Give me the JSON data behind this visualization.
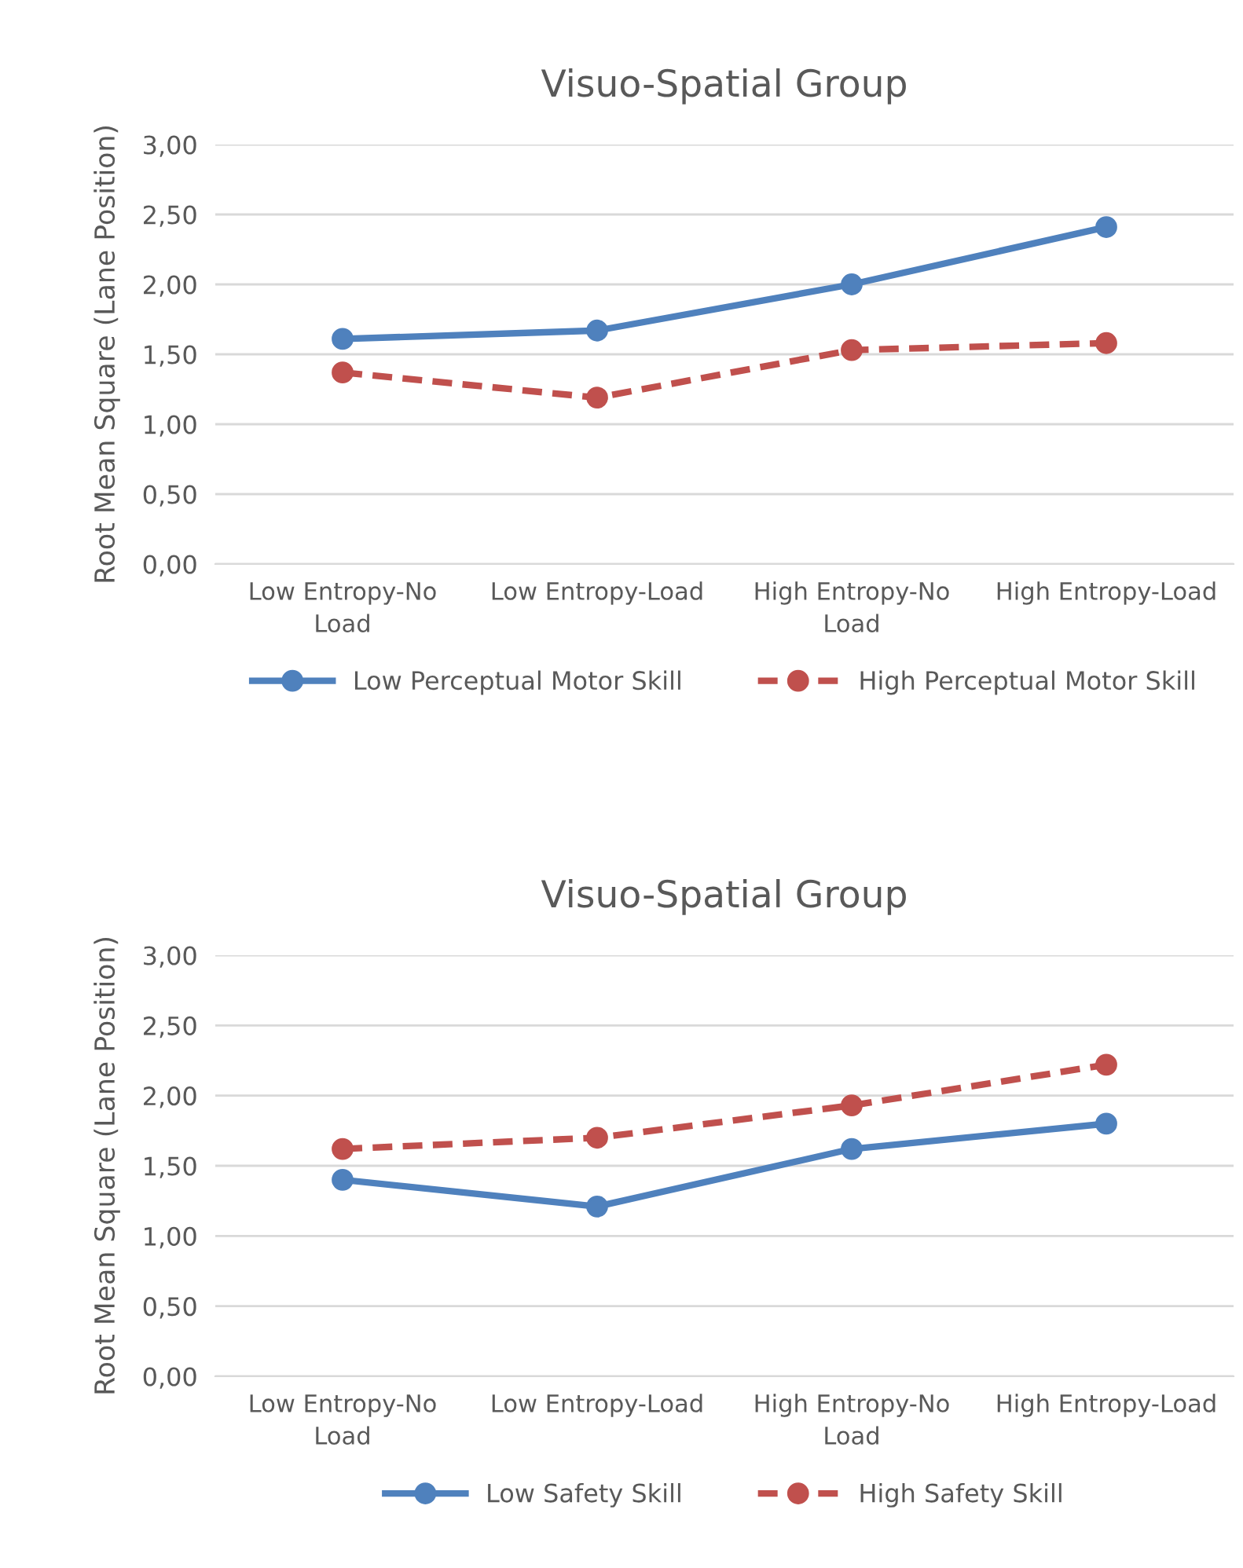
{
  "chart_data": [
    {
      "type": "line",
      "title": "Visuo-Spatial Group",
      "ylabel": "Root Mean Square (Lane Position)",
      "categories": [
        "Low Entropy-No Load",
        "Low Entropy-Load",
        "High Entropy-No Load",
        "High Entropy-Load"
      ],
      "series": [
        {
          "name": "Low Perceptual Motor Skill",
          "color": "#4f81bd",
          "line_style": "solid",
          "values": [
            1.61,
            1.67,
            2.0,
            2.41
          ]
        },
        {
          "name": "High Perceptual Motor Skill",
          "color": "#c0504d",
          "line_style": "dashed",
          "values": [
            1.37,
            1.19,
            1.53,
            1.58
          ]
        }
      ],
      "ylim": [
        0,
        3
      ],
      "yticks": [
        {
          "value": 0,
          "label": "0,00"
        },
        {
          "value": 0.5,
          "label": "0,50"
        },
        {
          "value": 1,
          "label": "1,00"
        },
        {
          "value": 1.5,
          "label": "1,50"
        },
        {
          "value": 2,
          "label": "2,00"
        },
        {
          "value": 2.5,
          "label": "2,50"
        },
        {
          "value": 3,
          "label": "3,00"
        }
      ],
      "grid": "y",
      "legend": "bottom",
      "marker": "circle"
    },
    {
      "type": "line",
      "title": "Visuo-Spatial Group",
      "ylabel": "Root Mean Square (Lane Position)",
      "categories": [
        "Low Entropy-No Load",
        "Low Entropy-Load",
        "High Entropy-No Load",
        "High Entropy-Load"
      ],
      "series": [
        {
          "name": "Low Safety Skill",
          "color": "#4f81bd",
          "line_style": "solid",
          "values": [
            1.4,
            1.21,
            1.62,
            1.8
          ]
        },
        {
          "name": "High Safety Skill",
          "color": "#c0504d",
          "line_style": "dashed",
          "values": [
            1.62,
            1.7,
            1.93,
            2.22
          ]
        }
      ],
      "ylim": [
        0,
        3
      ],
      "yticks": [
        {
          "value": 0,
          "label": "0,00"
        },
        {
          "value": 0.5,
          "label": "0,50"
        },
        {
          "value": 1,
          "label": "1,00"
        },
        {
          "value": 1.5,
          "label": "1,50"
        },
        {
          "value": 2,
          "label": "2,00"
        },
        {
          "value": 2.5,
          "label": "2,50"
        },
        {
          "value": 3,
          "label": "3,00"
        }
      ],
      "grid": "y",
      "legend": "bottom",
      "marker": "circle"
    }
  ]
}
